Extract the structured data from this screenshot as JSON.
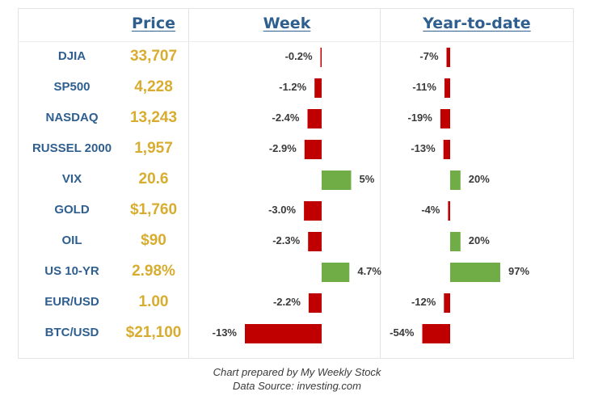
{
  "headers": {
    "price": "Price",
    "week": "Week",
    "ytd": "Year-to-date"
  },
  "colors": {
    "header": "#2e5f8f",
    "price": "#d8ad2f",
    "negative": "#c00000",
    "positive": "#70ad47"
  },
  "caption": {
    "line1": "Chart prepared by My Weekly Stock",
    "line2": "Data Source: investing.com"
  },
  "chart_data": {
    "type": "table",
    "columns": [
      "",
      "Price",
      "Week",
      "Year-to-date"
    ],
    "rows": [
      {
        "ticker": "DJIA",
        "price": "33,707",
        "week": -0.2,
        "week_label": "-0.2%",
        "ytd": -7,
        "ytd_label": "-7%"
      },
      {
        "ticker": "SP500",
        "price": "4,228",
        "week": -1.2,
        "week_label": "-1.2%",
        "ytd": -11,
        "ytd_label": "-11%"
      },
      {
        "ticker": "NASDAQ",
        "price": "13,243",
        "week": -2.4,
        "week_label": "-2.4%",
        "ytd": -19,
        "ytd_label": "-19%"
      },
      {
        "ticker": "RUSSEL 2000",
        "price": "1,957",
        "week": -2.9,
        "week_label": "-2.9%",
        "ytd": -13,
        "ytd_label": "-13%"
      },
      {
        "ticker": "VIX",
        "price": "20.6",
        "week": 5,
        "week_label": "5%",
        "ytd": 20,
        "ytd_label": "20%"
      },
      {
        "ticker": "GOLD",
        "price": "$1,760",
        "week": -3.0,
        "week_label": "-3.0%",
        "ytd": -4,
        "ytd_label": "-4%"
      },
      {
        "ticker": "OIL",
        "price": "$90",
        "week": -2.3,
        "week_label": "-2.3%",
        "ytd": 20,
        "ytd_label": "20%"
      },
      {
        "ticker": "US 10-YR",
        "price": "2.98%",
        "week": 4.7,
        "week_label": "4.7%",
        "ytd": 97,
        "ytd_label": "97%"
      },
      {
        "ticker": "EUR/USD",
        "price": "1.00",
        "week": -2.2,
        "week_label": "-2.2%",
        "ytd": -12,
        "ytd_label": "-12%"
      },
      {
        "ticker": "BTC/USD",
        "price": "$21,100",
        "week": -13,
        "week_label": "-13%",
        "ytd": -54,
        "ytd_label": "-54%"
      }
    ]
  }
}
